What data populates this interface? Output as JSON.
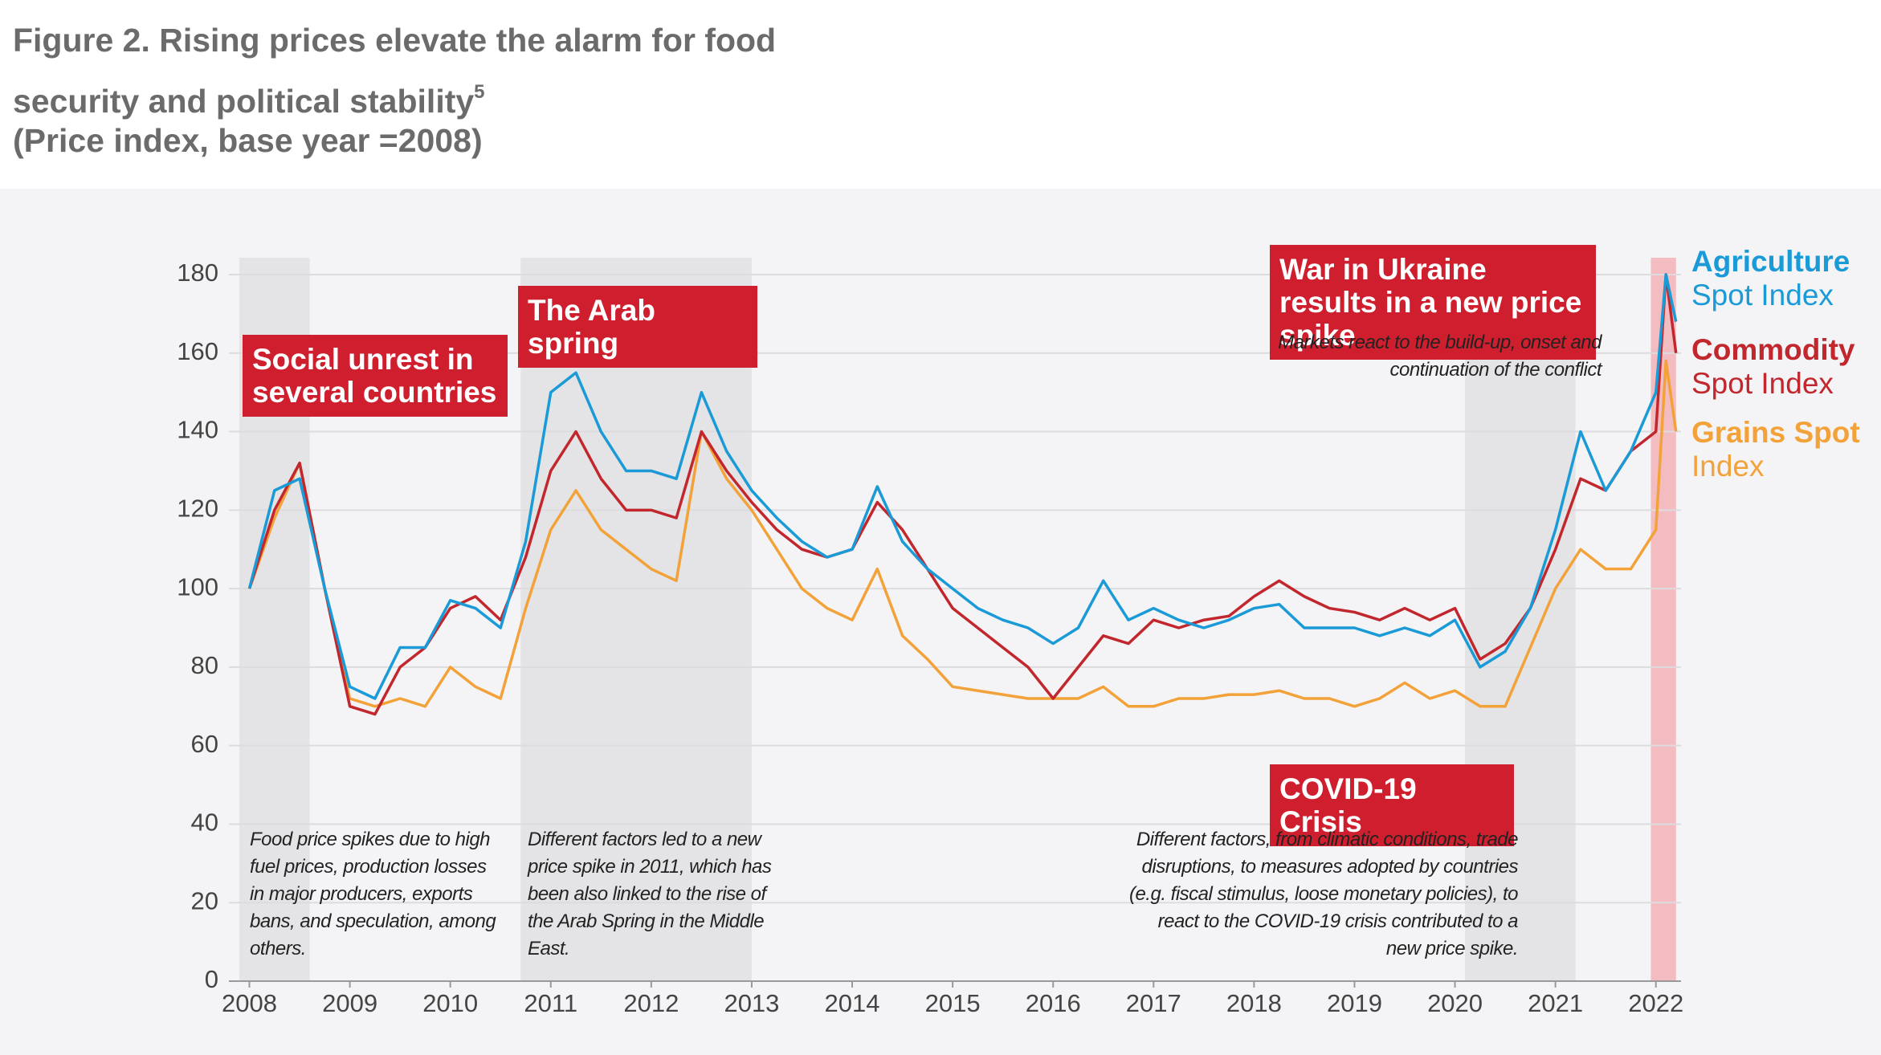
{
  "chart_data": {
    "type": "line",
    "title": "Figure 2. Rising prices elevate the alarm for food security and political stability",
    "title_note": "5",
    "subtitle": "(Price index, base year =2008)",
    "x": [
      2008,
      2008.25,
      2008.5,
      2008.75,
      2009,
      2009.25,
      2009.5,
      2009.75,
      2010,
      2010.25,
      2010.5,
      2010.75,
      2011,
      2011.25,
      2011.5,
      2011.75,
      2012,
      2012.25,
      2012.5,
      2012.75,
      2013,
      2013.25,
      2013.5,
      2013.75,
      2014,
      2014.25,
      2014.5,
      2014.75,
      2015,
      2015.25,
      2015.5,
      2015.75,
      2016,
      2016.25,
      2016.5,
      2016.75,
      2017,
      2017.25,
      2017.5,
      2017.75,
      2018,
      2018.25,
      2018.5,
      2018.75,
      2019,
      2019.25,
      2019.5,
      2019.75,
      2020,
      2020.25,
      2020.5,
      2020.75,
      2021,
      2021.25,
      2021.5,
      2021.75,
      2022,
      2022.1,
      2022.2
    ],
    "xlim": [
      2007.9,
      2022.25
    ],
    "xticks": [
      2008,
      2009,
      2010,
      2011,
      2012,
      2013,
      2014,
      2015,
      2016,
      2017,
      2018,
      2019,
      2020,
      2021,
      2022
    ],
    "ylim": [
      0,
      180
    ],
    "yticks": [
      0,
      20,
      40,
      60,
      80,
      100,
      120,
      140,
      160,
      180
    ],
    "grid": true,
    "series": [
      {
        "name": "Grains Spot Index",
        "color": "#f3a23a",
        "values": [
          100,
          118,
          132,
          100,
          72,
          70,
          72,
          70,
          80,
          75,
          72,
          95,
          115,
          125,
          115,
          110,
          105,
          102,
          140,
          128,
          120,
          110,
          100,
          95,
          92,
          105,
          88,
          82,
          75,
          74,
          73,
          72,
          72,
          72,
          75,
          70,
          70,
          72,
          72,
          73,
          73,
          74,
          72,
          72,
          70,
          72,
          76,
          72,
          74,
          70,
          70,
          85,
          100,
          110,
          105,
          105,
          115,
          158,
          140
        ]
      },
      {
        "name": "Commodity Spot Index",
        "color": "#c1272d",
        "values": [
          100,
          120,
          132,
          100,
          70,
          68,
          80,
          85,
          95,
          98,
          92,
          108,
          130,
          140,
          128,
          120,
          120,
          118,
          140,
          130,
          122,
          115,
          110,
          108,
          110,
          122,
          115,
          105,
          95,
          90,
          85,
          80,
          72,
          80,
          88,
          86,
          92,
          90,
          92,
          93,
          98,
          102,
          98,
          95,
          94,
          92,
          95,
          92,
          95,
          82,
          86,
          95,
          110,
          128,
          125,
          135,
          140,
          180,
          160
        ]
      },
      {
        "name": "Agriculture Spot Index",
        "color": "#1a9ad6",
        "values": [
          100,
          125,
          128,
          100,
          75,
          72,
          85,
          85,
          97,
          95,
          90,
          112,
          150,
          155,
          140,
          130,
          130,
          128,
          150,
          135,
          125,
          118,
          112,
          108,
          110,
          126,
          112,
          105,
          100,
          95,
          92,
          90,
          86,
          90,
          102,
          92,
          95,
          92,
          90,
          92,
          95,
          96,
          90,
          90,
          90,
          88,
          90,
          88,
          92,
          80,
          84,
          95,
          115,
          140,
          125,
          135,
          150,
          180,
          168
        ]
      }
    ],
    "legend_order": [
      2,
      1,
      0
    ],
    "shaded_periods": [
      {
        "start": 2007.9,
        "end": 2008.6,
        "color": "#e4e4e6"
      },
      {
        "start": 2010.7,
        "end": 2013.0,
        "color": "#e4e4e6"
      },
      {
        "start": 2020.1,
        "end": 2021.2,
        "color": "#e4e4e6"
      },
      {
        "start": 2021.95,
        "end": 2022.2,
        "color": "#f2bcc0"
      }
    ],
    "annotations": [
      {
        "text": "Social unrest in several countries",
        "style": "box"
      },
      {
        "text": "The Arab spring",
        "style": "box"
      },
      {
        "text": "War in Ukraine results in a new price spike",
        "style": "box"
      },
      {
        "text": "Markets react to the build-up, onset and continuation of the conflict",
        "style": "note"
      },
      {
        "text": "COVID-19 Crisis",
        "style": "box"
      },
      {
        "text": "Food price spikes due to high fuel prices, production losses in major producers, exports bans, and speculation, among others.",
        "style": "note"
      },
      {
        "text": "Different factors led to a new price spike in 2011, which has been also linked to the rise of the Arab Spring in the Middle East.",
        "style": "note"
      },
      {
        "text": "Different factors, from climatic conditions, trade disruptions, to measures adopted by countries (e.g. fiscal stimulus, loose monetary policies), to react to the COVID-19 crisis contributed to a new price spike.",
        "style": "note"
      }
    ]
  }
}
